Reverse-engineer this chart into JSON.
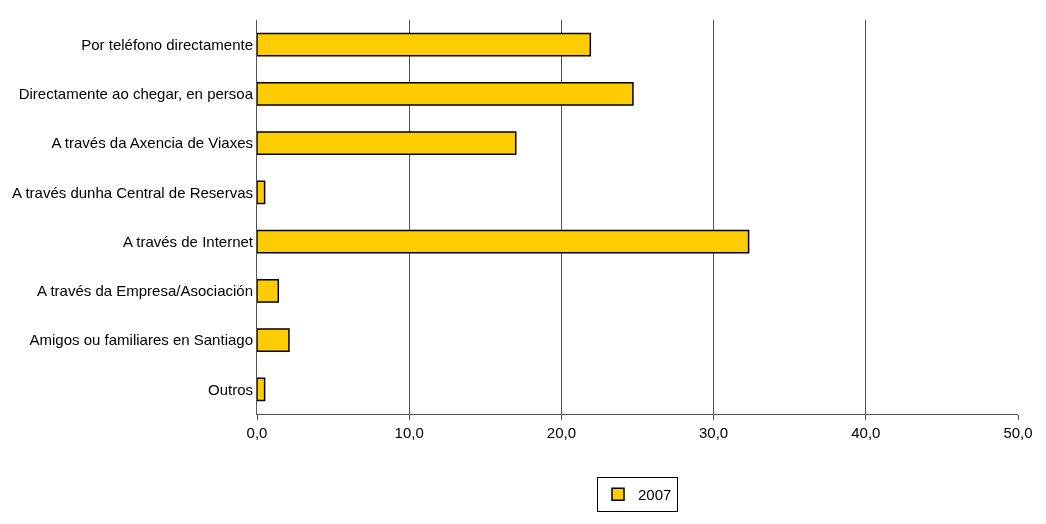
{
  "chart_data": {
    "type": "bar",
    "orientation": "horizontal",
    "categories": [
      "Por teléfono directamente",
      "Directamente ao chegar, en persoa",
      "A través da Axencia de Viaxes",
      "A través dunha Central de Reservas",
      "A través de Internet",
      "A través da Empresa/Asociación",
      "Amigos ou familiares en Santiago",
      "Outros"
    ],
    "series": [
      {
        "name": "2007",
        "color": "#ffcc00",
        "values": [
          21.9,
          24.7,
          17.0,
          0.5,
          32.3,
          1.4,
          2.1,
          0.5
        ]
      }
    ],
    "xlim": [
      0,
      50
    ],
    "xticks": [
      {
        "value": 0,
        "label": "0,0"
      },
      {
        "value": 10,
        "label": "10,0"
      },
      {
        "value": 20,
        "label": "20,0"
      },
      {
        "value": 30,
        "label": "30,0"
      },
      {
        "value": 40,
        "label": "40,0"
      },
      {
        "value": 50,
        "label": "50,0"
      }
    ],
    "grid": "x",
    "legend": "bottom"
  }
}
